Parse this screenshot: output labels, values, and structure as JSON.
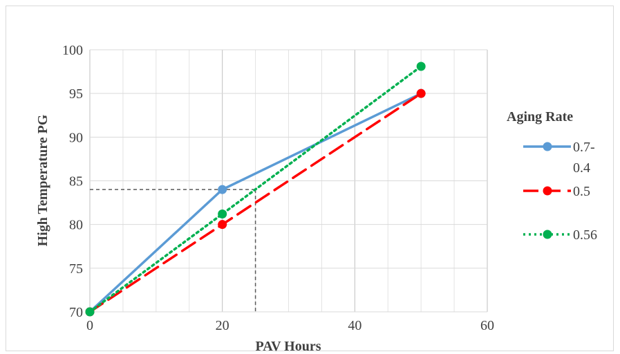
{
  "chart_data": {
    "type": "line",
    "title": "",
    "xlabel": "PAV Hours",
    "ylabel": "High Temperature PG",
    "xlim": [
      0,
      60
    ],
    "ylim": [
      70,
      100
    ],
    "x_ticks": [
      0,
      20,
      40,
      60
    ],
    "y_ticks": [
      70,
      75,
      80,
      85,
      90,
      95,
      100
    ],
    "grid": true,
    "legend": {
      "title": "Aging Rate",
      "position": "right"
    },
    "series": [
      {
        "name": "0.7-0.4",
        "label_lines": [
          "0.7-",
          "0.4"
        ],
        "color": "#5b9bd5",
        "dash": "solid",
        "points": [
          [
            0,
            70
          ],
          [
            20,
            84
          ],
          [
            50,
            95
          ]
        ]
      },
      {
        "name": "0.5",
        "label_lines": [
          "0.5"
        ],
        "color": "#ff0000",
        "dash": "dashed",
        "points": [
          [
            0,
            70
          ],
          [
            20,
            80
          ],
          [
            50,
            95
          ]
        ]
      },
      {
        "name": "0.56",
        "label_lines": [
          "0.56"
        ],
        "color": "#00b050",
        "dash": "dotted",
        "points": [
          [
            0,
            70
          ],
          [
            20,
            81.2
          ],
          [
            50,
            98.1
          ]
        ]
      }
    ],
    "annotations": {
      "reference_lines": {
        "x": 25,
        "y": 84,
        "style": "dashed",
        "color": "#595959"
      }
    }
  }
}
